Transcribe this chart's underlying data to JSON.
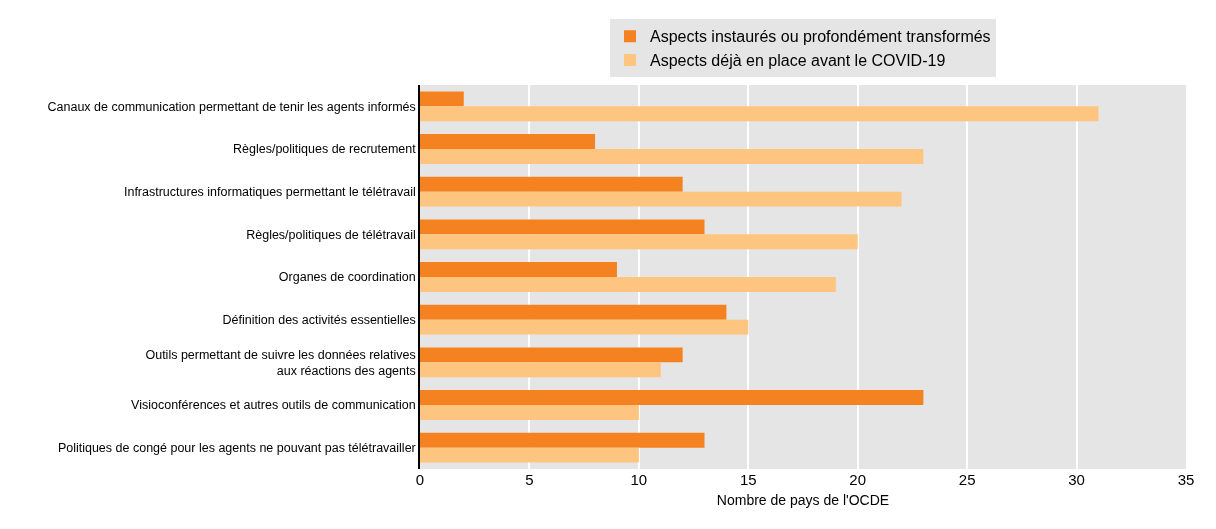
{
  "chart_data": {
    "type": "bar",
    "orientation": "horizontal",
    "categories": [
      "Canaux de communication permettant de tenir les agents informés",
      "Règles/politiques de recrutement",
      "Infrastructures informatiques permettant le télétravail",
      "Règles/politiques de télétravail",
      "Organes de coordination",
      "Définition des activités essentielles",
      "Outils permettant de suivre les données relatives\naux réactions des agents",
      "Visioconférences et autres outils de communication",
      "Politiques de congé pour les agents ne pouvant pas télétravailler"
    ],
    "series": [
      {
        "name": "Aspects instaurés ou profondément transformés",
        "color": "#f58220",
        "values": [
          2,
          8,
          12,
          13,
          9,
          14,
          12,
          23,
          13
        ]
      },
      {
        "name": "Aspects déjà en place avant le COVID-19",
        "color": "#fdc57f",
        "values": [
          31,
          23,
          22,
          20,
          19,
          15,
          11,
          10,
          10
        ]
      }
    ],
    "xlabel": "Nombre de pays de l'OCDE",
    "xlim": [
      0,
      35
    ],
    "xticks": [
      0,
      5,
      10,
      15,
      20,
      25,
      30,
      35
    ],
    "grid": "x",
    "legend": "top"
  }
}
